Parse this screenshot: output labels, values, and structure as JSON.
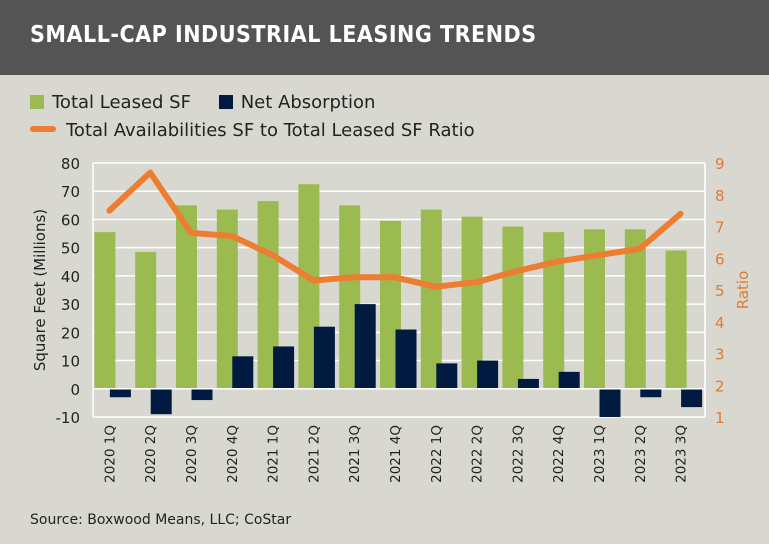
{
  "chart_data": {
    "type": "bar+line",
    "title": "SMALL-CAP INDUSTRIAL LEASING TRENDS",
    "categories": [
      "2020 1Q",
      "2020 2Q",
      "2020 3Q",
      "2020 4Q",
      "2021 1Q",
      "2021 2Q",
      "2021 3Q",
      "2021 4Q",
      "2022 1Q",
      "2022 2Q",
      "2022 3Q",
      "2022 4Q",
      "2023 1Q",
      "2023 2Q",
      "2023 3Q"
    ],
    "series": [
      {
        "name": "Total Leased SF",
        "type": "bar",
        "axis": "left",
        "color": "#9bbb50",
        "values": [
          55.5,
          48.5,
          65,
          63.5,
          66.5,
          72.5,
          65,
          59.5,
          63.5,
          61,
          57.5,
          55.5,
          56.5,
          56.5,
          49
        ]
      },
      {
        "name": "Net Absorption",
        "type": "bar",
        "axis": "left",
        "color": "#001a40",
        "values": [
          -3,
          -9,
          -4,
          11.5,
          15,
          22,
          30,
          21,
          9,
          10,
          3.5,
          6,
          -10,
          -3,
          -6.5
        ]
      },
      {
        "name": "Total Availabilities SF to Total Leased SF Ratio",
        "type": "line",
        "axis": "right",
        "color": "#ed7d31",
        "values": [
          7.5,
          8.7,
          6.8,
          6.7,
          6.1,
          5.3,
          5.4,
          5.4,
          5.1,
          5.25,
          5.6,
          5.9,
          6.1,
          6.3,
          7.4
        ]
      }
    ],
    "ylabel": "Square Feet (Millions)",
    "ylim": [
      -10,
      80
    ],
    "yticks": [
      "-10",
      "0",
      "10",
      "20",
      "30",
      "40",
      "50",
      "60",
      "70",
      "80"
    ],
    "y2label": "Ratio",
    "y2lim": [
      1,
      9
    ],
    "y2ticks": [
      "1",
      "2",
      "3",
      "4",
      "5",
      "6",
      "7",
      "8",
      "9"
    ],
    "grid": true,
    "legend": "top"
  },
  "source": "Source: Boxwood Means, LLC; CoStar"
}
